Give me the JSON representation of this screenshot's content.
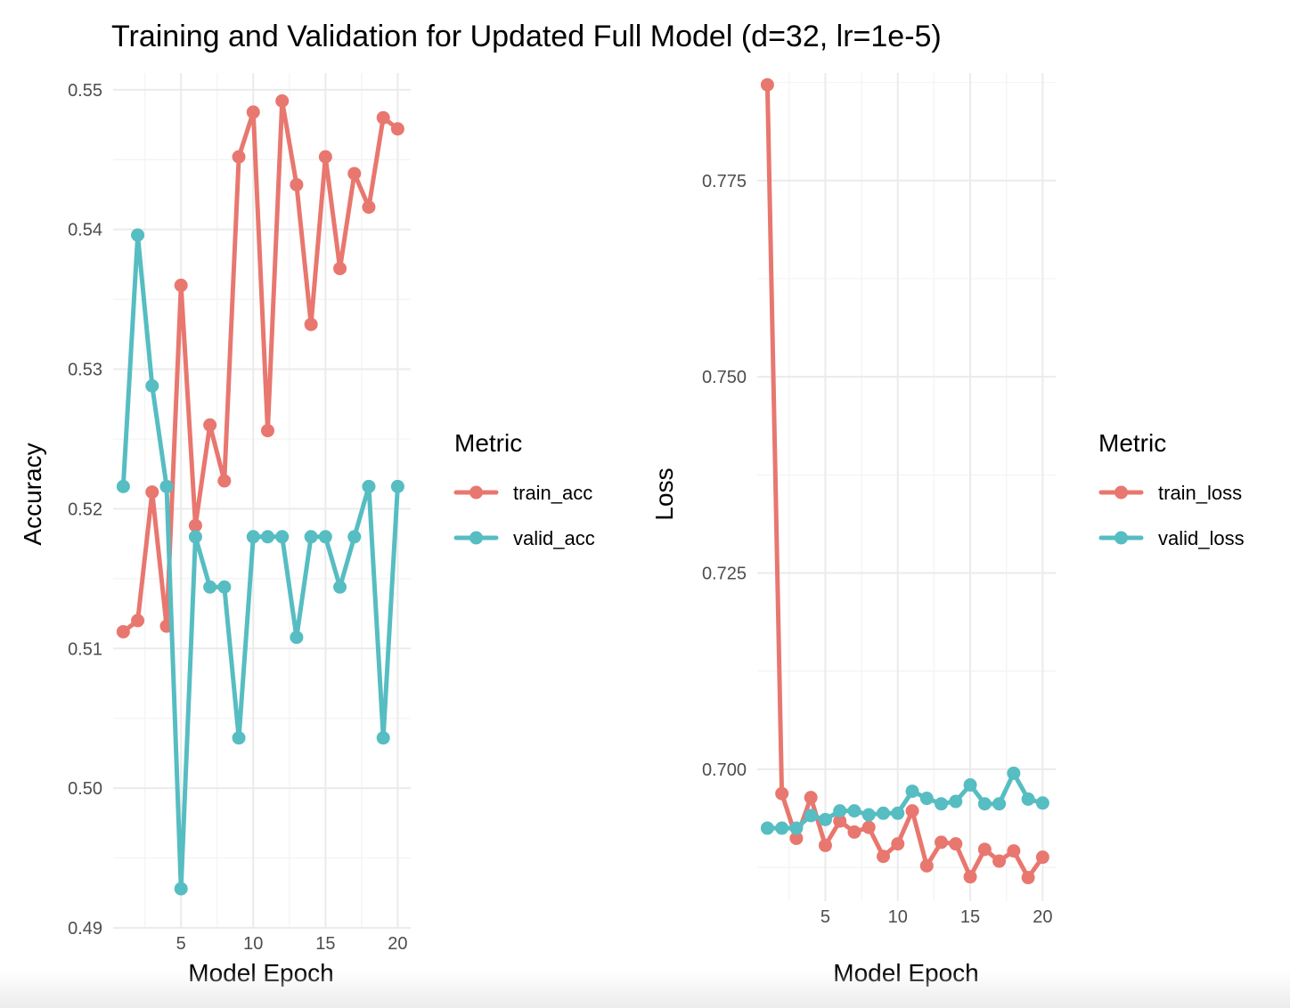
{
  "figure_title": "Training and Validation for Updated Full Model (d=32, lr=1e-5)",
  "colors": {
    "train": "#e8776f",
    "valid": "#56bdc2"
  },
  "chart_data": [
    {
      "type": "line",
      "xlabel": "Model Epoch",
      "ylabel": "Accuracy",
      "xlim": [
        0.3,
        20.9
      ],
      "ylim": [
        0.49,
        0.5512
      ],
      "xticks": [
        5,
        10,
        15,
        20
      ],
      "xtick_labels": [
        "5",
        "10",
        "15",
        "20"
      ],
      "yticks": [
        0.49,
        0.5,
        0.51,
        0.52,
        0.53,
        0.54,
        0.55
      ],
      "ytick_labels": [
        "0.49",
        "0.50",
        "0.51",
        "0.52",
        "0.53",
        "0.54",
        "0.55"
      ],
      "legend_title": "Metric",
      "legend_placement": "right",
      "grid": true,
      "x": [
        1,
        2,
        3,
        4,
        5,
        6,
        7,
        8,
        9,
        10,
        11,
        12,
        13,
        14,
        15,
        16,
        17,
        18,
        19,
        20
      ],
      "series": [
        {
          "name": "train_acc",
          "color": "#e8776f",
          "values": [
            0.5112,
            0.512,
            0.5212,
            0.5116,
            0.536,
            0.5188,
            0.526,
            0.522,
            0.5452,
            0.5484,
            0.5256,
            0.5492,
            0.5432,
            0.5332,
            0.5452,
            0.5372,
            0.544,
            0.5416,
            0.548,
            0.5472
          ]
        },
        {
          "name": "valid_acc",
          "color": "#56bdc2",
          "values": [
            0.5216,
            0.5396,
            0.5288,
            0.5216,
            0.4928,
            0.518,
            0.5144,
            0.5144,
            0.5036,
            0.518,
            0.518,
            0.518,
            0.5108,
            0.518,
            0.518,
            0.5144,
            0.518,
            0.5216,
            0.5036,
            0.5216
          ]
        }
      ]
    },
    {
      "type": "line",
      "xlabel": "Model Epoch",
      "ylabel": "Loss",
      "xlim": [
        0.3,
        20.9
      ],
      "ylim": [
        0.6832,
        0.7887
      ],
      "xticks": [
        5,
        10,
        15,
        20
      ],
      "xtick_labels": [
        "5",
        "10",
        "15",
        "20"
      ],
      "yticks": [
        0.7,
        0.725,
        0.75,
        0.775
      ],
      "ytick_labels": [
        "0.700",
        "0.725",
        "0.750",
        "0.775"
      ],
      "legend_title": "Metric",
      "legend_placement": "right",
      "grid": true,
      "x": [
        1,
        2,
        3,
        4,
        5,
        6,
        7,
        8,
        9,
        10,
        11,
        12,
        13,
        14,
        15,
        16,
        17,
        18,
        19,
        20
      ],
      "series": [
        {
          "name": "train_loss",
          "color": "#e8776f",
          "values": [
            0.7872,
            0.6969,
            0.6912,
            0.6964,
            0.6903,
            0.6934,
            0.692,
            0.6926,
            0.6889,
            0.6905,
            0.6947,
            0.6877,
            0.6907,
            0.6905,
            0.6863,
            0.6898,
            0.6883,
            0.6896,
            0.6862,
            0.6888
          ]
        },
        {
          "name": "valid_loss",
          "color": "#56bdc2",
          "values": [
            0.6925,
            0.6925,
            0.6925,
            0.6941,
            0.6936,
            0.6947,
            0.6947,
            0.6942,
            0.6944,
            0.6944,
            0.6972,
            0.6963,
            0.6956,
            0.6959,
            0.698,
            0.6956,
            0.6956,
            0.6995,
            0.6962,
            0.6957
          ]
        }
      ]
    }
  ]
}
